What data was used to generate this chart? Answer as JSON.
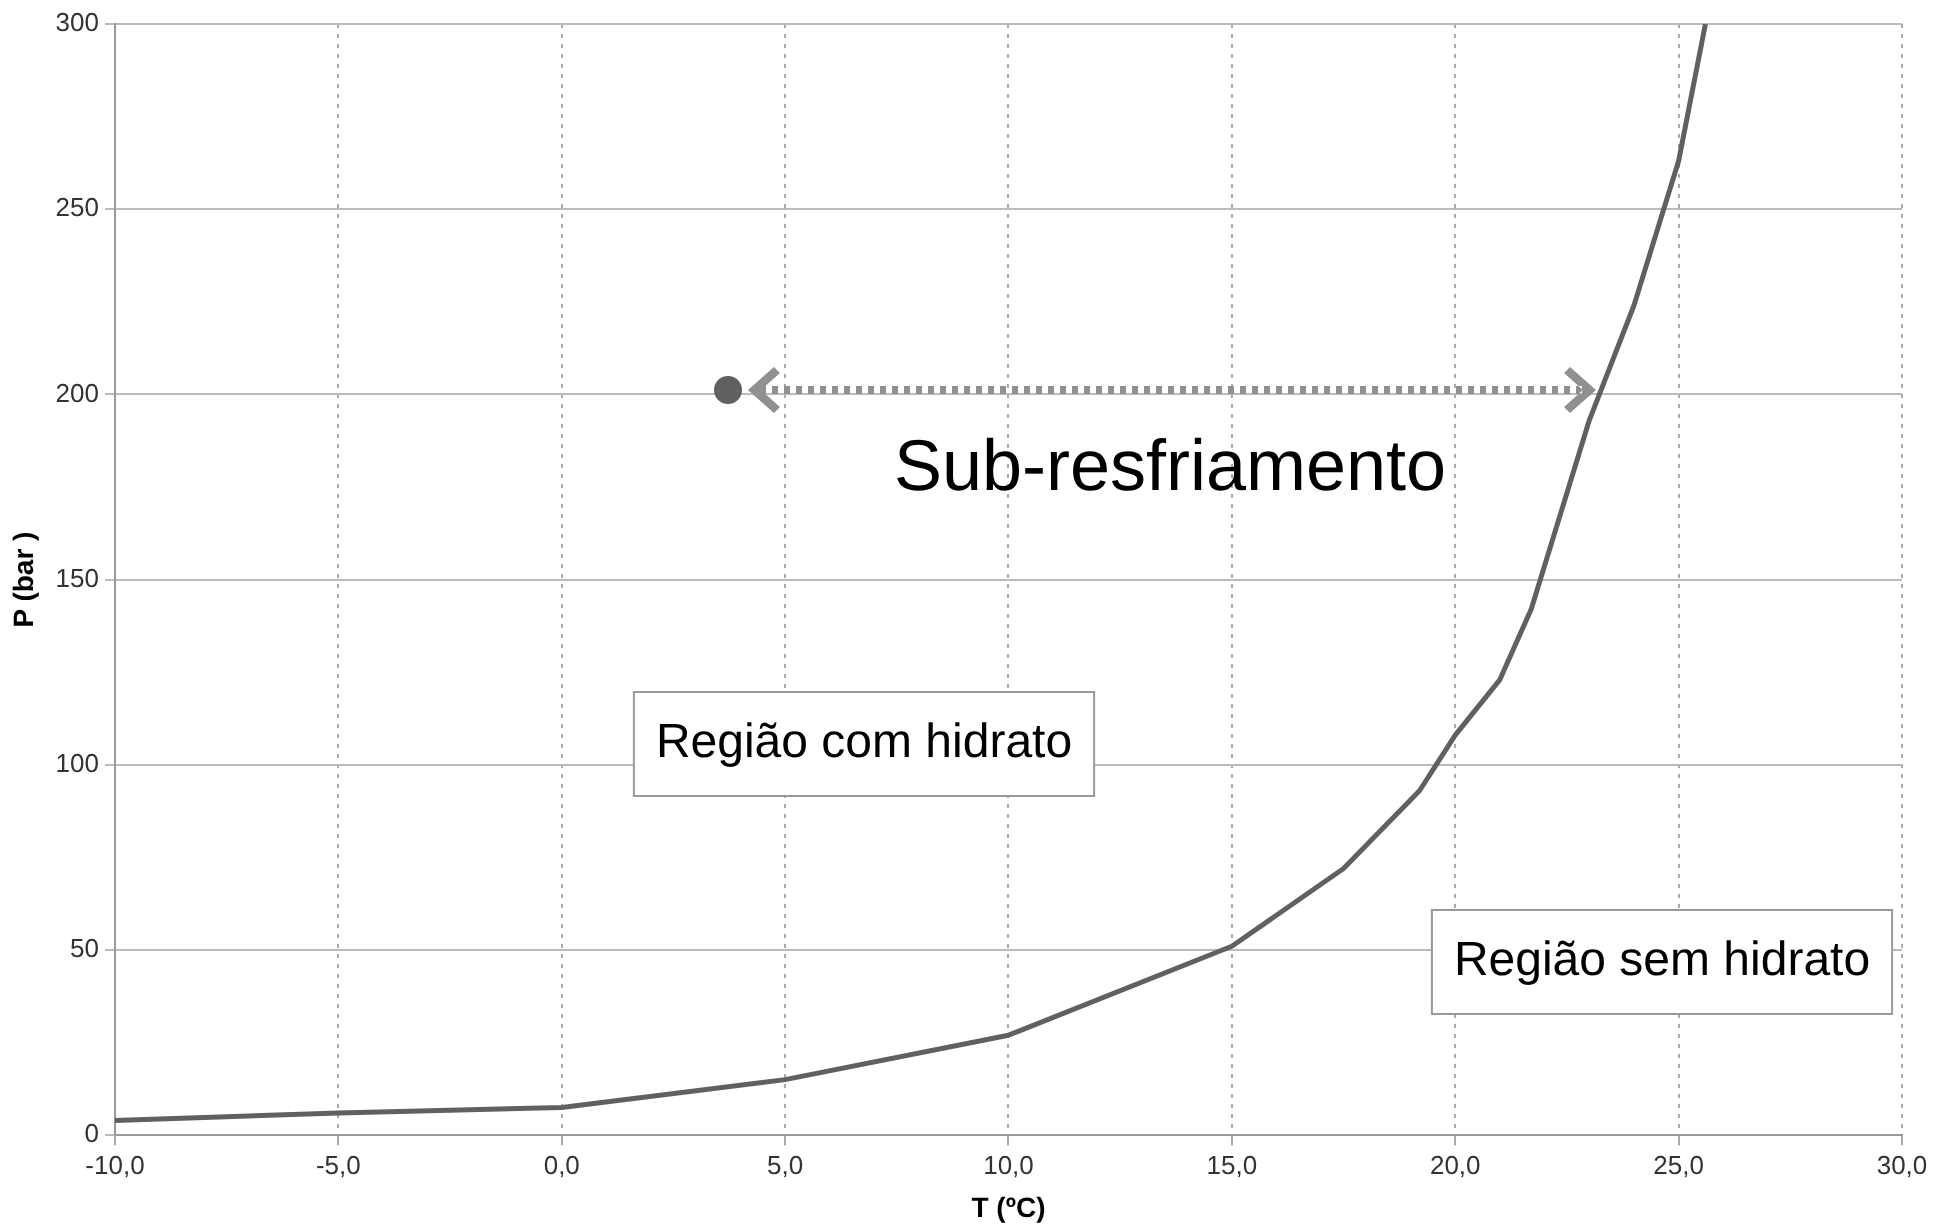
{
  "chart_data": {
    "type": "line",
    "xlabel": "T (ºC)",
    "ylabel": "P (bar )",
    "xlim": [
      -10,
      30
    ],
    "xticks": [
      {
        "value": -10,
        "label": "-10,0"
      },
      {
        "value": -5,
        "label": "-5,0"
      },
      {
        "value": 0,
        "label": "0,0"
      },
      {
        "value": 5,
        "label": "5,0"
      },
      {
        "value": 10,
        "label": "10,0"
      },
      {
        "value": 15,
        "label": "15,0"
      },
      {
        "value": 20,
        "label": "20,0"
      },
      {
        "value": 25,
        "label": "25,0"
      },
      {
        "value": 30,
        "label": "30,0"
      }
    ],
    "ylim": [
      0,
      300
    ],
    "yticks": [
      0,
      50,
      100,
      150,
      200,
      250,
      300
    ],
    "grid": true,
    "legend": false,
    "series": [
      {
        "color": "#606060",
        "marker": "none",
        "line_style": "solid",
        "x": [
          -10,
          -5,
          0,
          5,
          10,
          15,
          17.5,
          19.2,
          20,
          21,
          21.7,
          23,
          24,
          25,
          25.6
        ],
        "values": [
          4,
          6,
          7.5,
          15,
          27,
          51,
          72,
          93,
          108,
          123,
          142,
          193,
          224,
          263,
          300
        ]
      }
    ],
    "annotations": [
      "Sub-resfriamento",
      "Região com hidrato",
      "Região sem hidrato"
    ]
  }
}
